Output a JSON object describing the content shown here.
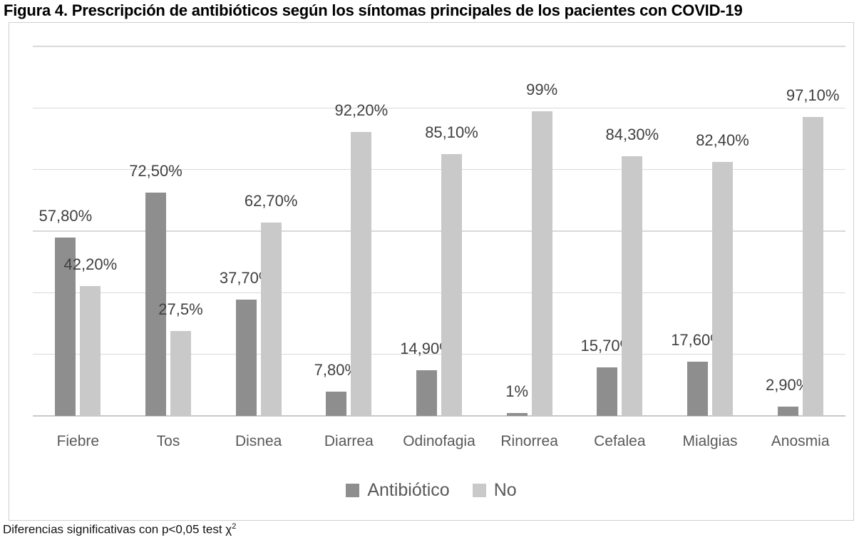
{
  "title": "Figura 4. Prescripción de antibióticos según los síntomas principales de los pacientes con COVID-19",
  "footnote": {
    "text": "Diferencias significativas con p<0,05 test χ",
    "superscript": "2"
  },
  "chart_data": {
    "type": "bar",
    "title": "Figura 4. Prescripción de antibióticos según los síntomas principales de los pacientes con COVID-19",
    "categories": [
      "Fiebre",
      "Tos",
      "Disnea",
      "Diarrea",
      "Odinofagia",
      "Rinorrea",
      "Cefalea",
      "Mialgias",
      "Anosmia"
    ],
    "series": [
      {
        "name": "Antibiótico",
        "color": "#8e8e8e",
        "values": [
          57.8,
          72.5,
          37.7,
          7.8,
          14.9,
          1,
          15.7,
          17.6,
          2.9
        ],
        "labels": [
          "57,80%",
          "72,50%",
          "37,70%",
          "7,80%",
          "14,90%",
          "1%",
          "15,70%",
          "17,60%",
          "2,90%"
        ]
      },
      {
        "name": "No",
        "color": "#c9c9c9",
        "values": [
          42.2,
          27.5,
          62.7,
          92.2,
          85.1,
          99,
          84.3,
          82.4,
          97.1
        ],
        "labels": [
          "42,20%",
          "27,5%",
          "62,70%",
          "92,20%",
          "85,10%",
          "99%",
          "84,30%",
          "82,40%",
          "97,10%"
        ]
      }
    ],
    "xlabel": "",
    "ylabel": "",
    "ylim": [
      0,
      120
    ],
    "gridline_step": 20,
    "grid": true,
    "y_axis_labels_visible": false,
    "legend_position": "bottom-center",
    "colors": {
      "grid": "#d9d9d9",
      "axis_line": "#c9c9c9",
      "data_label": "#404040",
      "category_label": "#595959",
      "legend_text": "#595959",
      "chart_border": "#cfcfcf"
    }
  }
}
